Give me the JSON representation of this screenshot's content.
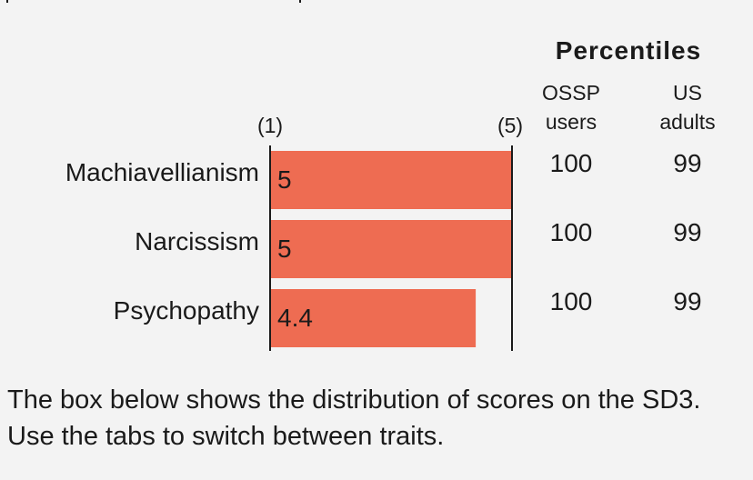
{
  "chart_data": {
    "type": "bar",
    "orientation": "horizontal",
    "categories": [
      "Machiavellianism",
      "Narcissism",
      "Psychopathy"
    ],
    "values": [
      5,
      5,
      4.4
    ],
    "value_labels": [
      "5",
      "5",
      "4.4"
    ],
    "xlim": [
      1,
      5
    ],
    "scale_min_label": "(1)",
    "scale_max_label": "(5)",
    "bar_color": "#ee6c52"
  },
  "percentiles": {
    "title": "Percentiles",
    "columns": [
      {
        "line1": "OSSP",
        "line2": "users",
        "values": [
          "100",
          "100",
          "100"
        ]
      },
      {
        "line1": "US",
        "line2": "adults",
        "values": [
          "99",
          "99",
          "99"
        ]
      }
    ]
  },
  "caption": "The box below shows the distribution of scores on the SD3. Use the tabs to switch between traits."
}
